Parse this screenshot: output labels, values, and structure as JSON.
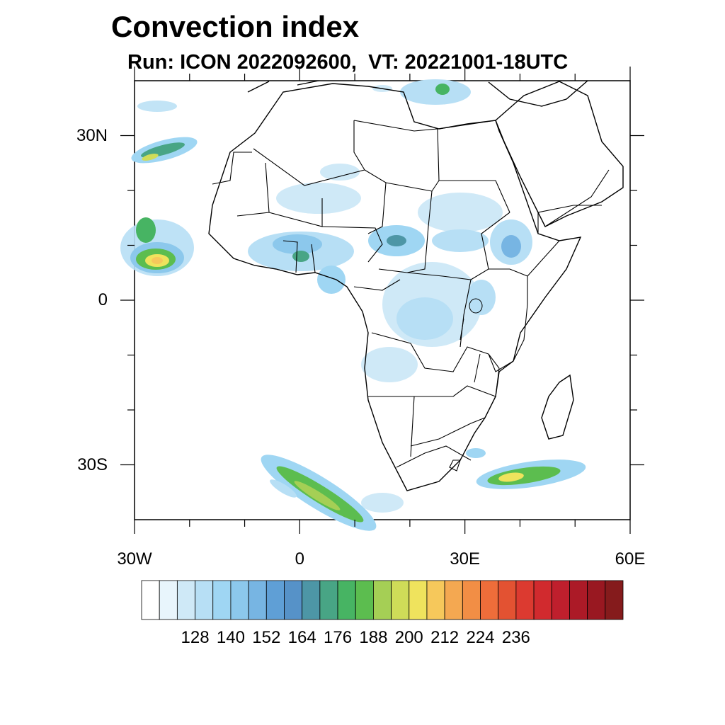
{
  "title": "Convection index",
  "subtitle": "Run: ICON 2022092600,  VT: 20221001-18UTC",
  "map": {
    "region": "Africa",
    "lon_range": [
      -30,
      60
    ],
    "lat_range": [
      -40,
      40
    ],
    "lat_ticks": [
      {
        "value": 30,
        "label": "30N"
      },
      {
        "value": 0,
        "label": "0"
      },
      {
        "value": -30,
        "label": "30S"
      }
    ],
    "lon_ticks": [
      {
        "value": -30,
        "label": "30W"
      },
      {
        "value": 0,
        "label": "0"
      },
      {
        "value": 30,
        "label": "30E"
      },
      {
        "value": 60,
        "label": "60E"
      }
    ]
  },
  "colorbar": {
    "labels": [
      "128",
      "140",
      "152",
      "164",
      "176",
      "188",
      "200",
      "212",
      "224",
      "236"
    ],
    "colors": [
      "#ffffff",
      "#e8f5fc",
      "#cfe9f7",
      "#b7dff5",
      "#9fd6f3",
      "#8cc8ec",
      "#77b5e3",
      "#5f9fd6",
      "#5692c8",
      "#4d96a6",
      "#48a585",
      "#47b463",
      "#5cbd4f",
      "#a5cf55",
      "#cfdc58",
      "#efe35d",
      "#f6c85b",
      "#f4a851",
      "#f28e45",
      "#ee6d3a",
      "#e35232",
      "#dc3a30",
      "#d12a2e",
      "#bf1f2d",
      "#ac1a27",
      "#991821",
      "#851b1c"
    ]
  }
}
